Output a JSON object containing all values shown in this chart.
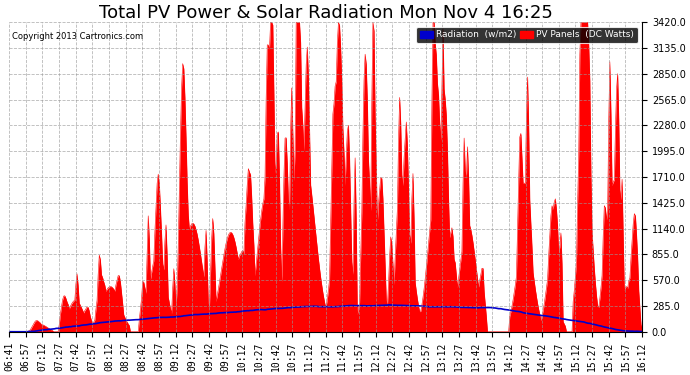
{
  "title": "Total PV Power & Solar Radiation Mon Nov 4 16:25",
  "copyright": "Copyright 2013 Cartronics.com",
  "legend_radiation": "Radiation  (w/m2)",
  "legend_pv": "PV Panels  (DC Watts)",
  "ylabel_right_ticks": [
    0.0,
    285.0,
    570.0,
    855.0,
    1140.0,
    1425.0,
    1710.0,
    1995.0,
    2280.0,
    2565.0,
    2850.0,
    3135.0,
    3420.0
  ],
  "ymax": 3420.0,
  "bg_color": "#ffffff",
  "plot_bg_color": "#ffffff",
  "grid_color": "#999999",
  "pv_color": "#ff0000",
  "radiation_color": "#0000cc",
  "title_fontsize": 13,
  "tick_fontsize": 7,
  "xtick_labels": [
    "06:41",
    "06:57",
    "07:12",
    "07:27",
    "07:42",
    "07:57",
    "08:12",
    "08:27",
    "08:42",
    "08:57",
    "09:12",
    "09:27",
    "09:42",
    "09:57",
    "10:12",
    "10:27",
    "10:42",
    "10:57",
    "11:12",
    "11:27",
    "11:42",
    "11:57",
    "12:12",
    "12:27",
    "12:42",
    "12:57",
    "13:12",
    "13:27",
    "13:42",
    "13:57",
    "14:12",
    "14:27",
    "14:42",
    "14:57",
    "15:12",
    "15:27",
    "15:42",
    "15:57",
    "16:12"
  ]
}
